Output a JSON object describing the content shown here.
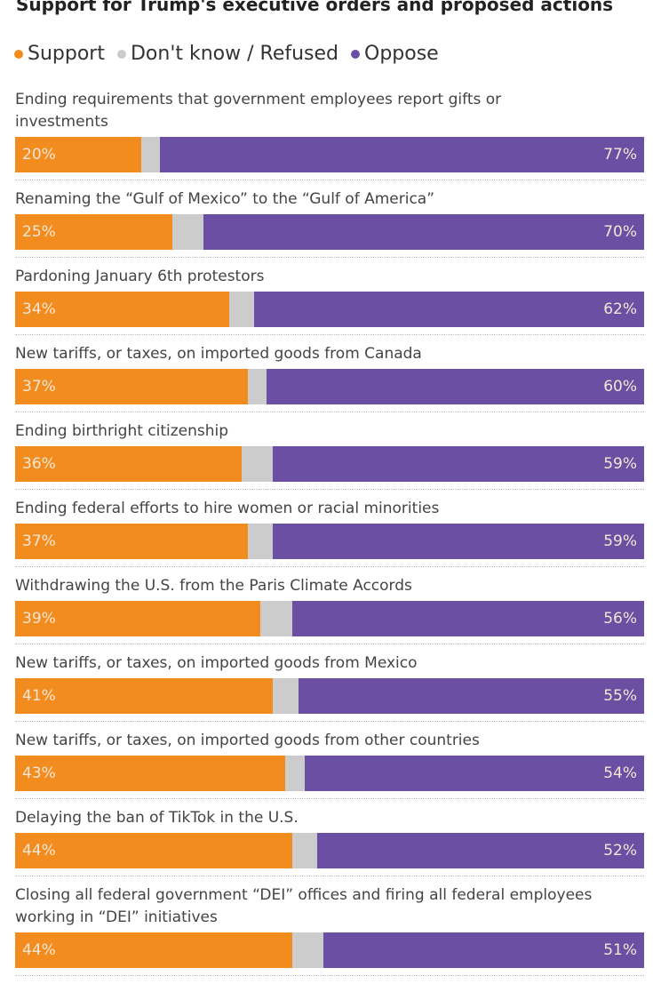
{
  "chart_data": {
    "type": "stacked-bar",
    "title": "Support for Trump's executive orders and proposed actions",
    "categories": [
      "Ending requirements that government employees report gifts or investments",
      "Renaming the “Gulf of Mexico” to the “Gulf of America”",
      "Pardoning January 6th protestors",
      "New tariffs, or taxes, on imported goods from Canada",
      "Ending birthright citizenship",
      "Ending federal efforts to hire women or racial minorities",
      "Withdrawing the U.S. from the Paris Climate Accords",
      "New tariffs, or taxes, on imported goods from Mexico",
      "New tariffs, or taxes, on imported goods from other countries",
      "Delaying the ban of TikTok in the U.S.",
      "Closing all federal government “DEI” offices and firing all federal employees working in “DEI” initiatives"
    ],
    "series": [
      {
        "name": "Support",
        "color": "#f28c1e",
        "values": [
          20,
          25,
          34,
          37,
          36,
          37,
          39,
          41,
          43,
          44,
          44
        ],
        "value_labels": [
          "20%",
          "25%",
          "34%",
          "37%",
          "36%",
          "37%",
          "39%",
          "41%",
          "43%",
          "44%",
          "44%"
        ]
      },
      {
        "name": "Don't know / Refused",
        "color": "#cccccc",
        "values": [
          3,
          5,
          4,
          3,
          5,
          4,
          5,
          4,
          3,
          4,
          5
        ]
      },
      {
        "name": "Oppose",
        "color": "#6a4fa3",
        "values": [
          77,
          70,
          62,
          60,
          59,
          59,
          56,
          55,
          54,
          52,
          51
        ],
        "value_labels": [
          "77%",
          "70%",
          "62%",
          "60%",
          "59%",
          "59%",
          "56%",
          "55%",
          "54%",
          "52%",
          "51%"
        ]
      }
    ]
  }
}
